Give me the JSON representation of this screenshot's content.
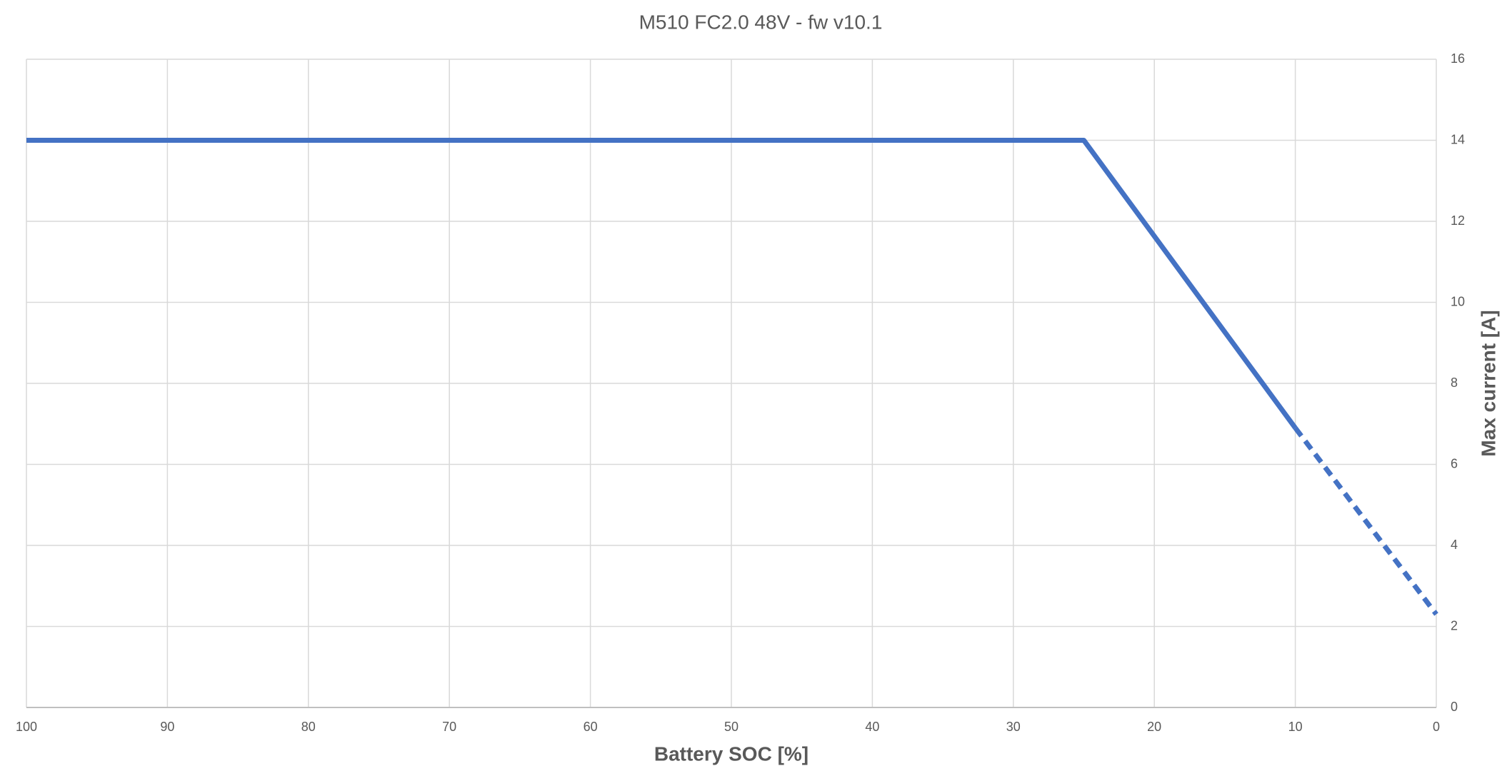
{
  "chart_data": {
    "type": "line",
    "title": "M510 FC2.0 48V - fw v10.1",
    "x_label": "Battery SOC [%]",
    "y_label": "Max current [A]",
    "xlim": [
      100,
      0
    ],
    "xticks": [
      100,
      90,
      80,
      70,
      60,
      50,
      40,
      30,
      20,
      10,
      0
    ],
    "ylim": [
      0,
      16
    ],
    "yticks": [
      0,
      2,
      4,
      6,
      8,
      10,
      12,
      14,
      16
    ],
    "y_axis_side": "right",
    "grid": true,
    "series": [
      {
        "color": "#4472c4",
        "dashed": false,
        "x": [
          100,
          25,
          10
        ],
        "values": [
          14,
          14,
          6.9
        ]
      },
      {
        "color": "#4472c4",
        "dashed": true,
        "x": [
          10,
          0
        ],
        "values": [
          6.9,
          2.3
        ]
      }
    ]
  }
}
